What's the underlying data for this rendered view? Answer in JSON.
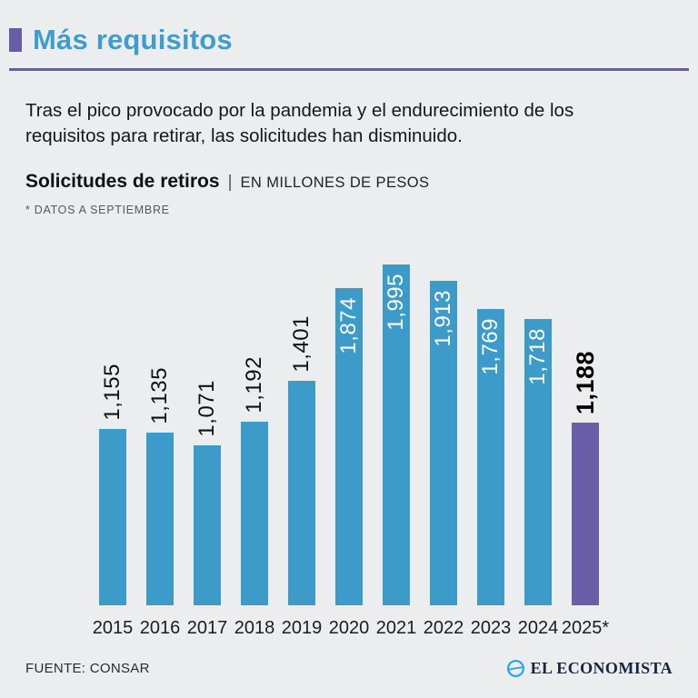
{
  "header": {
    "title": "Más requisitos",
    "title_color": "#3e9dcd",
    "accent_color": "#675da6"
  },
  "intro": {
    "line1": "Tras el pico provocado por la pandemia y el endurecimiento de los",
    "line2": "requisitos para retirar, las solicitudes han disminuido."
  },
  "subtitle": {
    "title": "Solicitudes de retiros",
    "separator": "|",
    "unit": "EN MILLONES DE PESOS",
    "footnote": "* DATOS A SEPTIEMBRE"
  },
  "chart_data": {
    "type": "bar",
    "title": "Solicitudes de retiros",
    "unit_label": "EN MILLONES DE PESOS",
    "note": "* DATOS A SEPTIEMBRE",
    "categories": [
      "2015",
      "2016",
      "2017",
      "2018",
      "2019",
      "2020",
      "2021",
      "2022",
      "2023",
      "2024",
      "2025*"
    ],
    "values": [
      1155,
      1135,
      1071,
      1192,
      1401,
      1874,
      1995,
      1913,
      1769,
      1718,
      1188
    ],
    "value_labels": [
      "1,155",
      "1,135",
      "1,071",
      "1,192",
      "1,401",
      "1,874",
      "1,995",
      "1,913",
      "1,769",
      "1,718",
      "1,188"
    ],
    "label_inside": [
      false,
      false,
      false,
      false,
      false,
      true,
      true,
      true,
      true,
      true,
      false
    ],
    "highlight_index": 10,
    "bar_color": "#3d9bc9",
    "highlight_color": "#6a5fa7",
    "ylim": [
      250,
      2020
    ],
    "grid": false,
    "legend": false,
    "xlabel": "",
    "ylabel": ""
  },
  "footer": {
    "source": "FUENTE: CONSAR",
    "brand": "EL ECONOMISTA",
    "brand_color": "#16243e",
    "logo_color": "#2aa9e0"
  }
}
